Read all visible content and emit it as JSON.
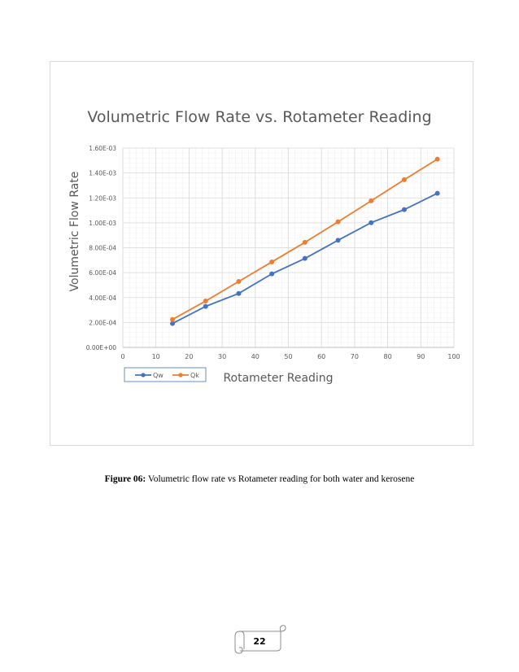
{
  "chart_data": {
    "type": "line",
    "title": "Volumetric Flow Rate vs. Rotameter Reading",
    "xlabel": "Rotameter Reading",
    "ylabel": "Volumetric Flow Rate",
    "xlim": [
      0,
      100
    ],
    "ylim": [
      0,
      0.0016
    ],
    "x_ticks": [
      "0",
      "10",
      "20",
      "30",
      "40",
      "50",
      "60",
      "70",
      "80",
      "90",
      "100"
    ],
    "y_ticks": [
      "0.00E+00",
      "2.00E-04",
      "4.00E-04",
      "6.00E-04",
      "8.00E-04",
      "1.00E-03",
      "1.20E-03",
      "1.40E-03",
      "1.60E-03"
    ],
    "grid": true,
    "minor_grid": true,
    "legend_position": "bottom-left",
    "x": [
      15,
      25,
      35,
      45,
      55,
      65,
      75,
      85,
      95
    ],
    "series": [
      {
        "name": "Qw",
        "color": "#4472C4",
        "values": [
          0.000192,
          0.000329,
          0.000433,
          0.00059,
          0.000714,
          0.00086,
          0.001001,
          0.001106,
          0.001237
        ]
      },
      {
        "name": "Qk",
        "color": "#ED7D31",
        "values": [
          0.000224,
          0.000372,
          0.000529,
          0.000686,
          0.000843,
          0.001008,
          0.001176,
          0.001346,
          0.001511
        ]
      }
    ]
  },
  "caption": {
    "label": "Figure 06:",
    "text": " Volumetric flow rate vs Rotameter reading for both water and kerosene"
  },
  "page_number": "22"
}
